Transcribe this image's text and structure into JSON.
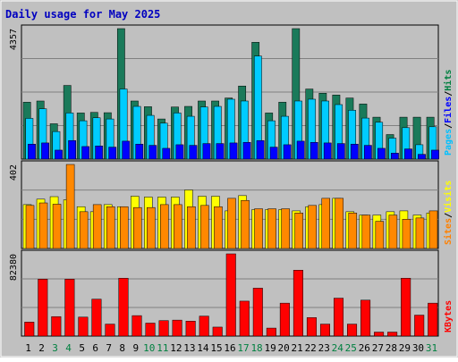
{
  "chart_data": {
    "type": "bar",
    "title": "Daily usage for May 2025",
    "categories": [
      "1",
      "2",
      "3",
      "4",
      "5",
      "6",
      "7",
      "8",
      "9",
      "10",
      "11",
      "12",
      "13",
      "14",
      "15",
      "16",
      "17",
      "18",
      "19",
      "20",
      "21",
      "22",
      "23",
      "24",
      "25",
      "26",
      "27",
      "28",
      "29",
      "30",
      "31"
    ],
    "weekend_days": [
      "3",
      "4",
      "10",
      "11",
      "17",
      "18",
      "24",
      "25",
      "31"
    ],
    "panels": [
      {
        "name": "hits-files-pages",
        "max_label": "4357",
        "ylim": [
          0,
          4357
        ],
        "legend": [
          {
            "label": "Pages",
            "color": "#00c0ff"
          },
          {
            "label": "Files",
            "color": "#0000ff"
          },
          {
            "label": "Hits",
            "color": "#008040"
          }
        ],
        "series": [
          {
            "name": "Hits",
            "color": "#1a7a5a",
            "values": [
              1900,
              1940,
              1180,
              2460,
              1540,
              1560,
              1550,
              4357,
              1940,
              1750,
              1340,
              1740,
              1760,
              1940,
              1940,
              2040,
              2440,
              3900,
              1540,
              1900,
              4357,
              2340,
              2200,
              2140,
              2040,
              1840,
              1400,
              820,
              1400,
              1400,
              1400
            ]
          },
          {
            "name": "Files",
            "color": "#00ccff",
            "values": [
              1360,
              1680,
              920,
              1540,
              1280,
              1380,
              1340,
              2340,
              1760,
              1460,
              1200,
              1540,
              1430,
              1740,
              1760,
              2000,
              1940,
              3440,
              1280,
              1430,
              1940,
              2000,
              1940,
              1820,
              1630,
              1370,
              1230,
              700,
              1050,
              480,
              1080
            ]
          },
          {
            "name": "Pages",
            "color": "#0000ff",
            "values": [
              500,
              540,
              300,
              620,
              420,
              440,
              400,
              600,
              500,
              460,
              360,
              480,
              460,
              520,
              520,
              540,
              560,
              620,
              400,
              480,
              600,
              560,
              540,
              520,
              500,
              460,
              360,
              200,
              340,
              160,
              300
            ]
          }
        ]
      },
      {
        "name": "visits-sites",
        "max_label": "402",
        "ylim": [
          0,
          402
        ],
        "legend": [
          {
            "label": "Sites",
            "color": "#ff8000"
          },
          {
            "label": "Visits",
            "color": "#ffff00"
          }
        ],
        "series": [
          {
            "name": "Visits",
            "color": "#ffff00",
            "values": [
              210,
              236,
              248,
              233,
              200,
              176,
              210,
              200,
              250,
              246,
              246,
              246,
              280,
              250,
              250,
              180,
              253,
              186,
              186,
              186,
              180,
              200,
              210,
              240,
              176,
              160,
              160,
              176,
              180,
              160,
              170
            ]
          },
          {
            "name": "Sites",
            "color": "#ff8800",
            "values": [
              206,
              218,
              212,
              402,
              176,
              210,
              200,
              200,
              196,
              196,
              210,
              210,
              200,
              206,
              200,
              240,
              230,
              190,
              190,
              190,
              170,
              206,
              240,
              240,
              170,
              160,
              130,
              160,
              140,
              146,
              180
            ]
          }
        ]
      },
      {
        "name": "kbytes",
        "max_label": "82380",
        "ylim": [
          0,
          82380
        ],
        "legend": [
          {
            "label": "KBytes",
            "color": "#ff0000"
          }
        ],
        "series": [
          {
            "name": "KBytes",
            "color": "#ff0000",
            "values": [
              14000,
              57000,
              19500,
              57000,
              19000,
              37000,
              12000,
              58000,
              20500,
              13000,
              15500,
              16000,
              15000,
              20000,
              9000,
              82380,
              35000,
              48000,
              8000,
              33000,
              66000,
              18500,
              12000,
              38000,
              12000,
              36000,
              4000,
              4000,
              58000,
              21000,
              33000
            ]
          }
        ]
      }
    ]
  }
}
